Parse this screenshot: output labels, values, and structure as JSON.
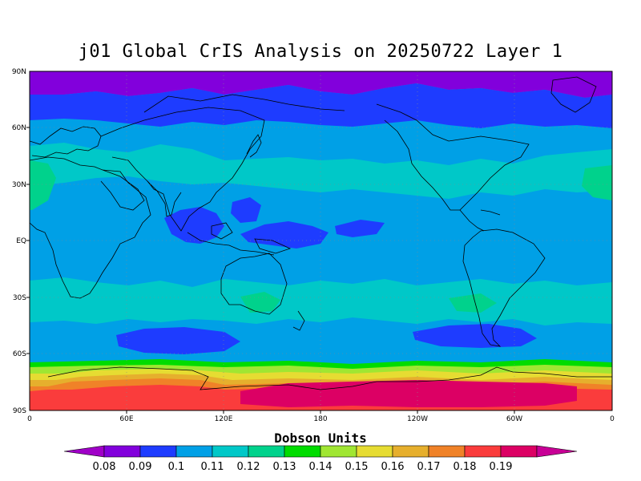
{
  "title": "j01 Global CrIS Analysis on 20250722 Layer 1",
  "y_ticks": [
    "90N",
    "60N",
    "30N",
    "EQ",
    "30S",
    "60S",
    "90S"
  ],
  "x_ticks": [
    "0",
    "60E",
    "120E",
    "180",
    "120W",
    "60W",
    "0"
  ],
  "colorbar": {
    "title": "Dobson Units",
    "labels": [
      "0.08",
      "0.09",
      "0.1",
      "0.11",
      "0.12",
      "0.13",
      "0.14",
      "0.15",
      "0.16",
      "0.17",
      "0.18",
      "0.19"
    ],
    "colors": [
      "#a000c8",
      "#8200dc",
      "#1e3cff",
      "#00a0e6",
      "#00c8c8",
      "#00d28c",
      "#00dc00",
      "#a0e632",
      "#e6dc32",
      "#e6af2d",
      "#f08228",
      "#fa3c3c",
      "#dc0064",
      "#c80096"
    ]
  },
  "map_levels": {
    "c8200dc": "#8200dc",
    "c1e3cff": "#1e3cff",
    "c00a0e6": "#00a0e6",
    "c00c8c8": "#00c8c8",
    "c00d28c": "#00d28c",
    "c00dc00": "#00dc00",
    "ca0e632": "#a0e632",
    "ce6dc32": "#e6dc32",
    "ce6af2d": "#e6af2d",
    "cf08228": "#f08228",
    "cfa3c3c": "#fa3c3c",
    "cdc0064": "#dc0064"
  }
}
